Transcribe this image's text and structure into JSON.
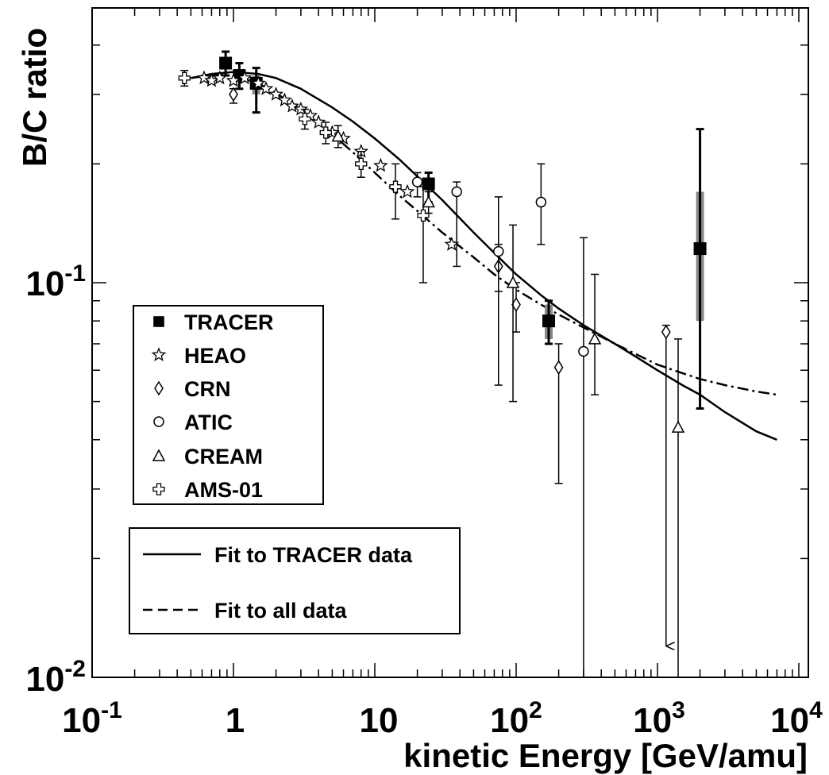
{
  "chart_data": {
    "type": "scatter",
    "xlabel": "kinetic Energy [GeV/amu]",
    "ylabel": "B/C ratio",
    "x_scale": "log",
    "y_scale": "log",
    "xlim": [
      0.1,
      10000
    ],
    "ylim": [
      0.01,
      0.5
    ],
    "x_tick_labels": [
      {
        "value": 0.1,
        "base": "10",
        "exp": "-1"
      },
      {
        "value": 1,
        "base": "1",
        "exp": ""
      },
      {
        "value": 10,
        "base": "10",
        "exp": ""
      },
      {
        "value": 100,
        "base": "10",
        "exp": "2"
      },
      {
        "value": 1000,
        "base": "10",
        "exp": "3"
      },
      {
        "value": 10000,
        "base": "10",
        "exp": "4"
      }
    ],
    "y_tick_labels": [
      {
        "value": 0.1,
        "base": "10",
        "exp": "-1"
      },
      {
        "value": 0.01,
        "base": "10",
        "exp": "-2"
      }
    ],
    "grid": false,
    "legend_position": "left-middle",
    "series": [
      {
        "name": "TRACER",
        "marker": "filled-square",
        "points": [
          {
            "x": 0.88,
            "y": 0.36,
            "lo": 0.335,
            "hi": 0.385
          },
          {
            "x": 1.1,
            "y": 0.335,
            "lo": 0.31,
            "hi": 0.36
          },
          {
            "x": 1.45,
            "y": 0.32,
            "lo": 0.27,
            "hi": 0.35,
            "box_lo": 0.3,
            "box_hi": 0.335
          },
          {
            "x": 24,
            "y": 0.178,
            "lo": 0.16,
            "hi": 0.19
          },
          {
            "x": 170,
            "y": 0.08,
            "lo": 0.07,
            "hi": 0.09,
            "box_lo": 0.072,
            "box_hi": 0.088
          },
          {
            "x": 2000,
            "y": 0.122,
            "lo": 0.048,
            "hi": 0.245,
            "box_lo": 0.08,
            "box_hi": 0.17
          }
        ]
      },
      {
        "name": "HEAO",
        "marker": "star",
        "points": [
          {
            "x": 0.62,
            "y": 0.33
          },
          {
            "x": 0.7,
            "y": 0.325
          },
          {
            "x": 0.8,
            "y": 0.33
          },
          {
            "x": 1.0,
            "y": 0.325
          },
          {
            "x": 1.2,
            "y": 0.33
          },
          {
            "x": 1.5,
            "y": 0.32
          },
          {
            "x": 1.7,
            "y": 0.31
          },
          {
            "x": 2.0,
            "y": 0.3
          },
          {
            "x": 2.3,
            "y": 0.29
          },
          {
            "x": 2.6,
            "y": 0.28
          },
          {
            "x": 3.0,
            "y": 0.275
          },
          {
            "x": 3.5,
            "y": 0.265
          },
          {
            "x": 4.0,
            "y": 0.255
          },
          {
            "x": 5.0,
            "y": 0.24
          },
          {
            "x": 6.0,
            "y": 0.232
          },
          {
            "x": 8.0,
            "y": 0.215
          },
          {
            "x": 11,
            "y": 0.198
          },
          {
            "x": 17,
            "y": 0.17
          },
          {
            "x": 35,
            "y": 0.125
          }
        ]
      },
      {
        "name": "CRN",
        "marker": "open-diamond",
        "points": [
          {
            "x": 1.0,
            "y": 0.3,
            "lo": 0.285,
            "hi": 0.31
          },
          {
            "x": 75,
            "y": 0.11,
            "lo": 0.095,
            "hi": 0.125
          },
          {
            "x": 100,
            "y": 0.088,
            "lo": 0.075,
            "hi": 0.1
          },
          {
            "x": 200,
            "y": 0.061,
            "lo": 0.031,
            "hi": 0.07
          },
          {
            "x": 1150,
            "y": 0.075,
            "lo": 0.012,
            "hi": 0.078
          }
        ]
      },
      {
        "name": "ATIC",
        "marker": "open-circle",
        "points": [
          {
            "x": 20,
            "y": 0.18,
            "lo": 0.165,
            "hi": 0.19
          },
          {
            "x": 38,
            "y": 0.17,
            "lo": 0.11,
            "hi": 0.18
          },
          {
            "x": 75,
            "y": 0.12,
            "lo": 0.055,
            "hi": 0.165
          },
          {
            "x": 150,
            "y": 0.16,
            "lo": 0.125,
            "hi": 0.2
          },
          {
            "x": 300,
            "y": 0.067,
            "lo": 0.01,
            "hi": 0.13
          }
        ]
      },
      {
        "name": "CREAM",
        "marker": "open-triangle",
        "points": [
          {
            "x": 5.5,
            "y": 0.235,
            "lo": 0.22,
            "hi": 0.25
          },
          {
            "x": 24,
            "y": 0.16,
            "lo": 0.15,
            "hi": 0.17
          },
          {
            "x": 95,
            "y": 0.1,
            "lo": 0.05,
            "hi": 0.14
          },
          {
            "x": 360,
            "y": 0.072,
            "lo": 0.052,
            "hi": 0.105
          },
          {
            "x": 1400,
            "y": 0.043,
            "lo": 0.01,
            "hi": 0.072
          }
        ]
      },
      {
        "name": "AMS-01",
        "marker": "open-cross",
        "points": [
          {
            "x": 0.45,
            "y": 0.33,
            "lo": 0.315,
            "hi": 0.345
          },
          {
            "x": 3.2,
            "y": 0.26,
            "lo": 0.245,
            "hi": 0.275
          },
          {
            "x": 4.5,
            "y": 0.24,
            "lo": 0.225,
            "hi": 0.255
          },
          {
            "x": 8.0,
            "y": 0.2,
            "lo": 0.185,
            "hi": 0.215
          },
          {
            "x": 14,
            "y": 0.175,
            "lo": 0.145,
            "hi": 0.2
          },
          {
            "x": 22,
            "y": 0.148,
            "lo": 0.1,
            "hi": 0.175
          }
        ]
      }
    ],
    "fits": [
      {
        "name": "Fit to TRACER data",
        "style": "solid",
        "x": [
          0.5,
          0.7,
          1,
          1.5,
          2,
          3,
          5,
          7,
          10,
          15,
          20,
          30,
          50,
          70,
          100,
          150,
          200,
          300,
          500,
          700,
          1000,
          1500,
          2000,
          3000,
          5000,
          7000
        ],
        "y": [
          0.33,
          0.338,
          0.342,
          0.338,
          0.33,
          0.31,
          0.278,
          0.256,
          0.232,
          0.205,
          0.186,
          0.162,
          0.134,
          0.119,
          0.105,
          0.093,
          0.086,
          0.078,
          0.07,
          0.065,
          0.06,
          0.055,
          0.052,
          0.047,
          0.042,
          0.04
        ]
      },
      {
        "name": "Fit to all data",
        "style": "dashed",
        "x": [
          0.5,
          0.7,
          1,
          1.5,
          2,
          3,
          5,
          7,
          10,
          15,
          20,
          30,
          50,
          70,
          100,
          150,
          200,
          300,
          500,
          700,
          1000,
          1500,
          2000,
          3000,
          5000,
          7000
        ],
        "y": [
          0.33,
          0.336,
          0.335,
          0.32,
          0.302,
          0.275,
          0.238,
          0.214,
          0.19,
          0.166,
          0.152,
          0.134,
          0.116,
          0.105,
          0.096,
          0.088,
          0.083,
          0.077,
          0.07,
          0.066,
          0.062,
          0.059,
          0.057,
          0.055,
          0.053,
          0.052
        ]
      }
    ]
  }
}
